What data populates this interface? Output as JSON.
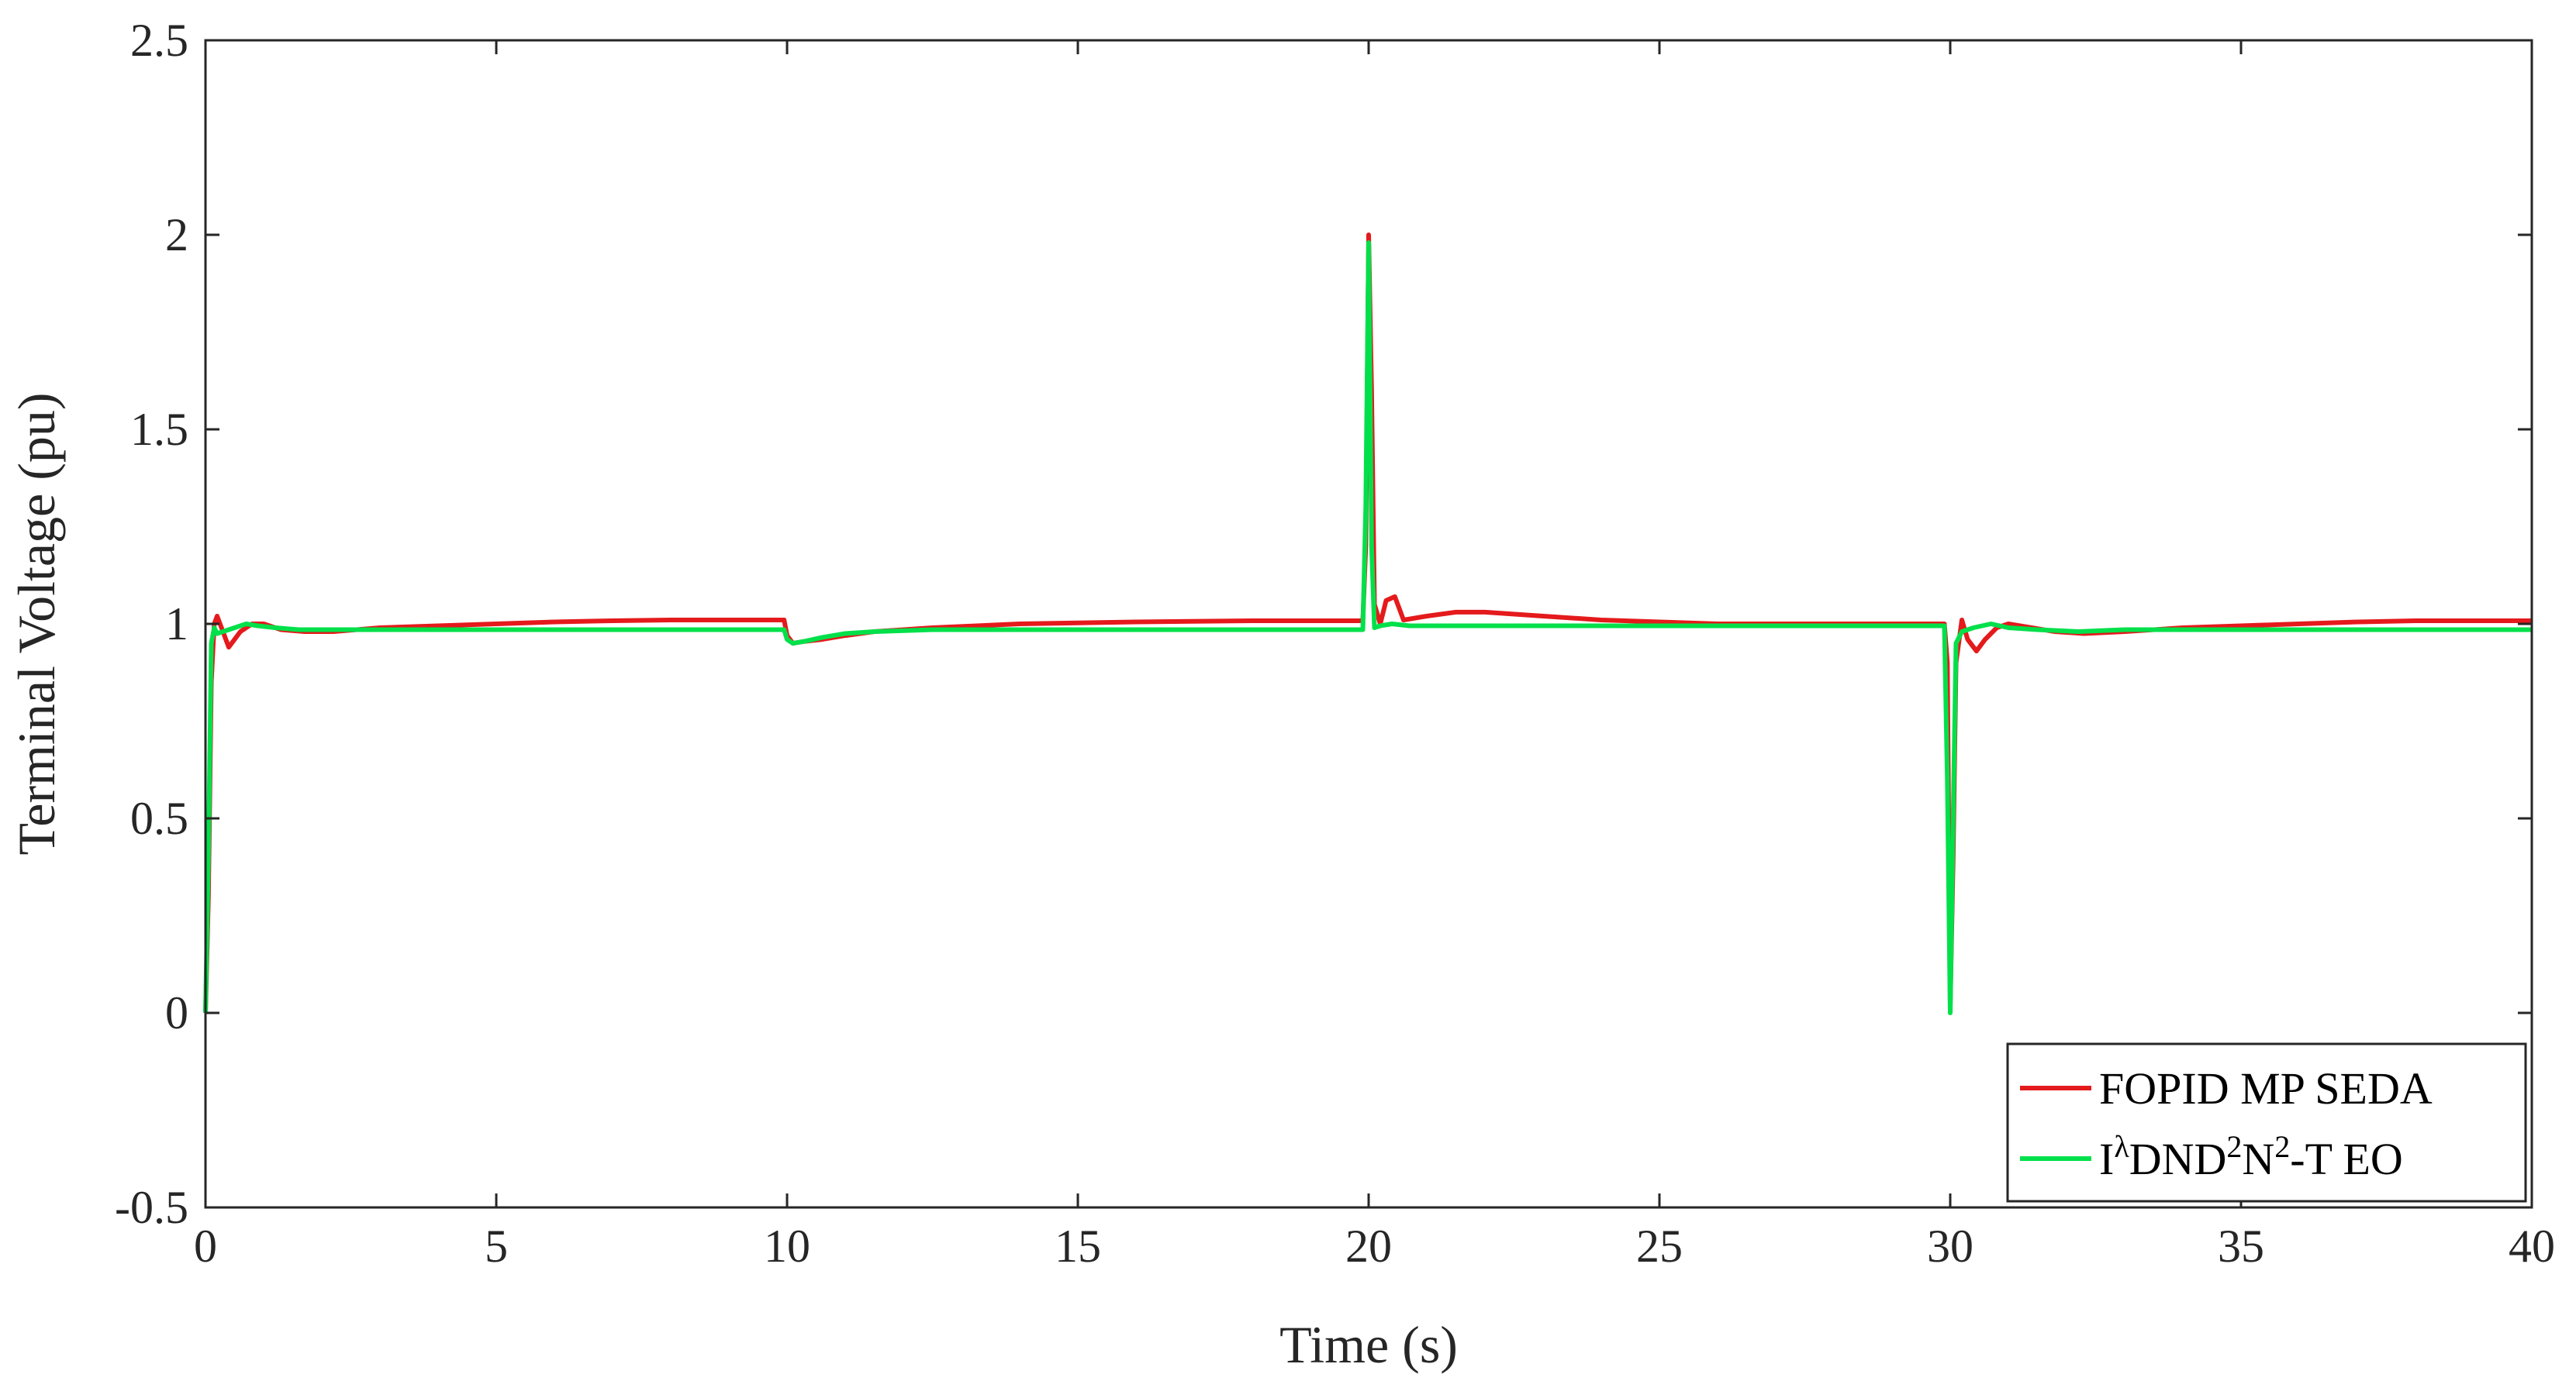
{
  "chart_data": {
    "type": "line",
    "title": "",
    "xlabel": "Time (s)",
    "ylabel": "Terminal Voltage (pu)",
    "xlim": [
      0,
      40
    ],
    "ylim": [
      -0.5,
      2.5
    ],
    "xticks": [
      0,
      5,
      10,
      15,
      20,
      25,
      30,
      35,
      40
    ],
    "yticks": [
      -0.5,
      0,
      0.5,
      1,
      1.5,
      2,
      2.5
    ],
    "xtick_labels": [
      "0",
      "5",
      "10",
      "15",
      "20",
      "25",
      "30",
      "35",
      "40"
    ],
    "ytick_labels": [
      "-0.5",
      "0",
      "0.5",
      "1",
      "1.5",
      "2",
      "2.5"
    ],
    "grid": false,
    "legend_position": "bottom-right",
    "series": [
      {
        "name": "FOPID MP SEDA",
        "legend_parts": {
          "base": "FOPID MP SEDA"
        },
        "color": "#e41a1c",
        "x": [
          0,
          0.05,
          0.1,
          0.15,
          0.2,
          0.3,
          0.4,
          0.6,
          0.8,
          1.0,
          1.3,
          1.7,
          2.2,
          3,
          4,
          5,
          6,
          7,
          8,
          9,
          9.95,
          10.0,
          10.1,
          10.3,
          10.6,
          11.0,
          11.5,
          12.5,
          14,
          16,
          18,
          19.9,
          19.95,
          20.0,
          20.05,
          20.1,
          20.2,
          20.3,
          20.45,
          20.6,
          21.0,
          21.5,
          22.0,
          23.0,
          24.0,
          25.0,
          26.0,
          27.0,
          28.0,
          29.0,
          29.9,
          29.95,
          30.0,
          30.05,
          30.1,
          30.2,
          30.3,
          30.45,
          30.6,
          30.8,
          31.0,
          31.4,
          31.8,
          32.3,
          33,
          34,
          35,
          36,
          37,
          38,
          39,
          40
        ],
        "y": [
          0,
          0.3,
          0.85,
          1.0,
          1.02,
          0.98,
          0.94,
          0.98,
          1.0,
          1.0,
          0.985,
          0.98,
          0.98,
          0.99,
          0.995,
          1.0,
          1.005,
          1.008,
          1.01,
          1.01,
          1.01,
          0.97,
          0.95,
          0.955,
          0.96,
          0.97,
          0.98,
          0.99,
          1.0,
          1.005,
          1.008,
          1.008,
          1.2,
          2.0,
          1.6,
          1.05,
          1.0,
          1.06,
          1.07,
          1.01,
          1.02,
          1.03,
          1.03,
          1.02,
          1.01,
          1.005,
          1.0,
          1.0,
          1.0,
          1.0,
          1.0,
          0.9,
          0.02,
          0.4,
          0.9,
          1.01,
          0.96,
          0.93,
          0.96,
          0.99,
          1.0,
          0.99,
          0.98,
          0.975,
          0.98,
          0.99,
          0.995,
          1.0,
          1.005,
          1.008,
          1.008,
          1.008
        ]
      },
      {
        "name": "IλDND2N2-T EO",
        "legend_parts": {
          "base1": "I",
          "sup1": "λ",
          "base2": "DND",
          "sup2": "2",
          "base3": "N",
          "sup3": "2",
          "base4": "-T EO"
        },
        "color": "#00e04a",
        "x": [
          0,
          0.05,
          0.1,
          0.15,
          0.2,
          0.3,
          0.5,
          0.7,
          0.9,
          1.2,
          1.6,
          2.2,
          3,
          4,
          5,
          6,
          7,
          8,
          9,
          9.95,
          10.0,
          10.1,
          10.3,
          10.6,
          11.0,
          11.5,
          12.5,
          14,
          16,
          18,
          19.9,
          19.95,
          20.0,
          20.05,
          20.1,
          20.2,
          20.4,
          20.7,
          21.2,
          22,
          23,
          24,
          25,
          26,
          27,
          28,
          29,
          29.9,
          29.95,
          30.0,
          30.05,
          30.1,
          30.2,
          30.4,
          30.7,
          31.0,
          31.5,
          32.2,
          33,
          34,
          35,
          36,
          37,
          38,
          39,
          40
        ],
        "y": [
          0,
          0.4,
          0.95,
          0.99,
          0.975,
          0.98,
          0.99,
          1.0,
          0.995,
          0.99,
          0.985,
          0.985,
          0.985,
          0.985,
          0.985,
          0.985,
          0.985,
          0.985,
          0.985,
          0.985,
          0.96,
          0.95,
          0.955,
          0.965,
          0.975,
          0.98,
          0.985,
          0.985,
          0.985,
          0.985,
          0.985,
          1.3,
          1.98,
          1.2,
          0.99,
          0.995,
          1.0,
          0.995,
          0.995,
          0.995,
          0.995,
          0.995,
          0.995,
          0.995,
          0.995,
          0.995,
          0.995,
          0.995,
          0.6,
          0.0,
          0.5,
          0.95,
          0.98,
          0.99,
          1.0,
          0.99,
          0.985,
          0.98,
          0.985,
          0.985,
          0.985,
          0.985,
          0.985,
          0.985,
          0.985,
          0.985
        ]
      }
    ]
  }
}
